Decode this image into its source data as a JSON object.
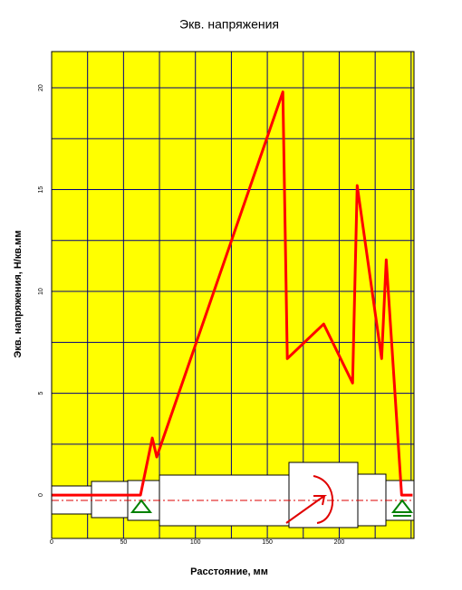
{
  "chart_data": {
    "type": "line",
    "title": "Экв. напряжения",
    "xlabel": "Расстояние, мм",
    "ylabel": "Экв. напряжения, Н/кв.мм",
    "series": [
      {
        "color": "#ff0000",
        "x": [
          0,
          61.8,
          70,
          73.1,
          160.8,
          163.9,
          189.2,
          209.3,
          212.5,
          229.5,
          232.7,
          243.4,
          251
        ],
        "values": [
          0,
          0,
          2.8,
          1.87,
          19.8,
          6.7,
          8.4,
          5.5,
          15.2,
          6.7,
          11.55,
          0,
          0
        ]
      }
    ],
    "xlim": [
      0,
      252
    ],
    "ylim": [
      -2.13,
      21.78
    ],
    "xticks": [
      0,
      50,
      100,
      150,
      200
    ],
    "yticks": [
      0,
      5,
      10,
      15,
      20
    ],
    "xminor": [
      25,
      75,
      125,
      175,
      225,
      250
    ],
    "yminor": [
      2.5,
      7.5,
      12.5,
      17.5
    ],
    "grid": true,
    "background": "#ffff00",
    "grid_color": "#000080"
  }
}
